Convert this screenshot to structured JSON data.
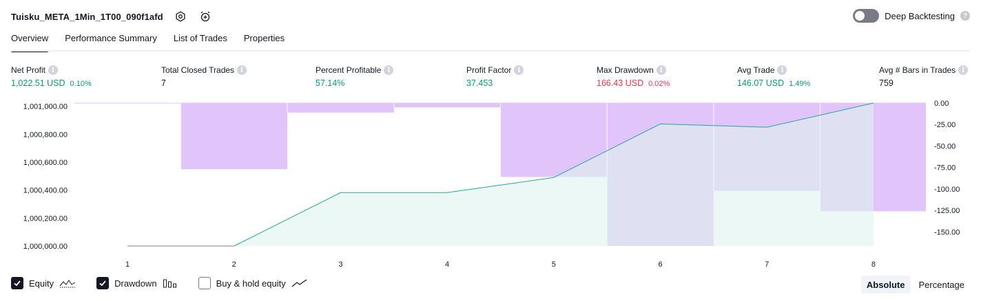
{
  "header": {
    "title": "Tuisku_META_1Min_1T00_090f1afd",
    "icons": [
      "settings-icon",
      "alarm-add-icon"
    ]
  },
  "deep_backtesting": {
    "label": "Deep Backtesting",
    "enabled": false
  },
  "tabs": [
    {
      "label": "Overview",
      "active": true
    },
    {
      "label": "Performance Summary",
      "active": false
    },
    {
      "label": "List of Trades",
      "active": false
    },
    {
      "label": "Properties",
      "active": false
    }
  ],
  "metrics": [
    {
      "label": "Net Profit",
      "value": "1,022.51 USD",
      "pct": "0.10%",
      "tone": "green"
    },
    {
      "label": "Total Closed Trades",
      "value": "7",
      "pct": "",
      "tone": "dark"
    },
    {
      "label": "Percent Profitable",
      "value": "57.14%",
      "pct": "",
      "tone": "green"
    },
    {
      "label": "Profit Factor",
      "value": "37.453",
      "pct": "",
      "tone": "green"
    },
    {
      "label": "Max Drawdown",
      "value": "166.43 USD",
      "pct": "0.02%",
      "tone": "red"
    },
    {
      "label": "Avg Trade",
      "value": "146.07 USD",
      "pct": "1.49%",
      "tone": "green"
    },
    {
      "label": "Avg # Bars in Trades",
      "value": "759",
      "pct": "",
      "tone": "dark"
    }
  ],
  "chart_data": {
    "type": "area",
    "x": [
      1,
      2,
      3,
      4,
      5,
      6,
      7,
      8
    ],
    "x_ticks": [
      "1",
      "2",
      "3",
      "4",
      "5",
      "6",
      "7",
      "8"
    ],
    "series": [
      {
        "kind": "equity_line",
        "values": [
          1000000,
          1000000,
          1000382,
          1000382,
          1000490,
          1000873,
          1000850,
          1001022.51
        ]
      },
      {
        "kind": "drawdown_bars",
        "values": [
          0,
          -77,
          -11,
          -5,
          -86,
          -166.43,
          -102,
          -126
        ]
      }
    ],
    "left_axis": {
      "ylim": [
        1000000,
        1001022.51
      ],
      "ticks": [
        "1,000,000.00",
        "1,000,200.00",
        "1,000,400.00",
        "1,000,600.00",
        "1,000,800.00",
        "1,001,000.00"
      ]
    },
    "right_axis": {
      "ylim": [
        -166.43,
        0
      ],
      "ticks": [
        "0.00",
        "-25.00",
        "-50.00",
        "-75.00",
        "-100.00",
        "-125.00",
        "-150.00"
      ]
    },
    "colors": {
      "equity_line": "#22ab94",
      "equity_fill": "#dff3ee",
      "drawdown": "#e1c4fa",
      "baseline": "#9598a1"
    }
  },
  "legend": [
    {
      "label": "Equity",
      "checked": true,
      "icon": "equity-line-icon"
    },
    {
      "label": "Drawdown",
      "checked": true,
      "icon": "drawdown-bars-icon"
    },
    {
      "label": "Buy & hold equity",
      "checked": false,
      "icon": "trend-line-icon"
    }
  ],
  "mode": [
    {
      "label": "Absolute",
      "active": true
    },
    {
      "label": "Percentage",
      "active": false
    }
  ]
}
